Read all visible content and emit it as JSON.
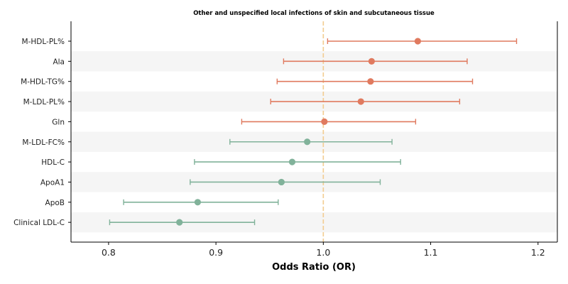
{
  "chart_data": {
    "type": "forest",
    "title": "Other and unspecified local infections of skin and subcutaneous tissue",
    "xlabel": "Odds Ratio (OR)",
    "xlim": [
      0.765,
      1.218
    ],
    "xticks": [
      0.8,
      0.9,
      1.0,
      1.1,
      1.2
    ],
    "xtick_labels": [
      "0.8",
      "0.9",
      "1.0",
      "1.1",
      "1.2"
    ],
    "reference_line": 1.0,
    "grid": false,
    "colors": {
      "increase": "#e07a5f",
      "decrease": "#81b29a",
      "reference": "#f2cc8f",
      "band": "#f5f5f5"
    },
    "rows": [
      {
        "label": "M-HDL-PL%",
        "or": 1.088,
        "lower": 1.004,
        "upper": 1.18,
        "color": "increase"
      },
      {
        "label": "Ala",
        "or": 1.045,
        "lower": 0.963,
        "upper": 1.134,
        "color": "increase"
      },
      {
        "label": "M-HDL-TG%",
        "or": 1.044,
        "lower": 0.957,
        "upper": 1.139,
        "color": "increase"
      },
      {
        "label": "M-LDL-PL%",
        "or": 1.035,
        "lower": 0.951,
        "upper": 1.127,
        "color": "increase"
      },
      {
        "label": "Gln",
        "or": 1.001,
        "lower": 0.924,
        "upper": 1.086,
        "color": "increase"
      },
      {
        "label": "M-LDL-FC%",
        "or": 0.985,
        "lower": 0.913,
        "upper": 1.064,
        "color": "decrease"
      },
      {
        "label": "HDL-C",
        "or": 0.971,
        "lower": 0.88,
        "upper": 1.072,
        "color": "decrease"
      },
      {
        "label": "ApoA1",
        "or": 0.961,
        "lower": 0.876,
        "upper": 1.053,
        "color": "decrease"
      },
      {
        "label": "ApoB",
        "or": 0.883,
        "lower": 0.814,
        "upper": 0.958,
        "color": "decrease"
      },
      {
        "label": "Clinical LDL-C",
        "or": 0.866,
        "lower": 0.801,
        "upper": 0.936,
        "color": "decrease"
      }
    ]
  }
}
